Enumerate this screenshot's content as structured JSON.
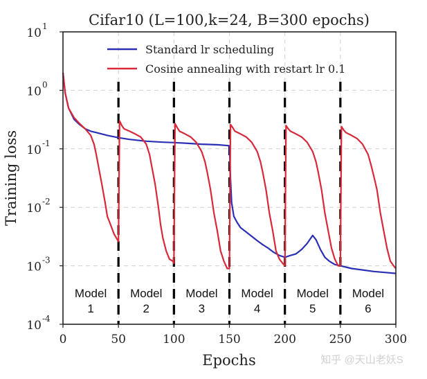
{
  "chart_data": {
    "type": "line",
    "title": "Cifar10 (L=100,k=24, B=300 epochs)",
    "xlabel": "Epochs",
    "ylabel": "Training loss",
    "xlim": [
      0,
      300
    ],
    "ylim": [
      0.0001,
      10
    ],
    "yscale": "log",
    "grid": true,
    "legend_position": "top-right",
    "x_ticks": [
      0,
      50,
      100,
      150,
      200,
      250,
      300
    ],
    "x_tick_labels": [
      "0",
      "50",
      "100",
      "150",
      "200",
      "250",
      "300"
    ],
    "y_ticks": [
      0.0001,
      0.001,
      0.01,
      0.1,
      1,
      10
    ],
    "y_tick_labels": [
      {
        "base": "10",
        "exp": "-4"
      },
      {
        "base": "10",
        "exp": "-3"
      },
      {
        "base": "10",
        "exp": "-2"
      },
      {
        "base": "10",
        "exp": "-1"
      },
      {
        "base": "10",
        "exp": "0"
      },
      {
        "base": "10",
        "exp": "1"
      }
    ],
    "series": [
      {
        "name": "Standard lr scheduling",
        "color": "#2a2fb5",
        "points": [
          [
            0,
            2.0
          ],
          [
            2,
            0.9
          ],
          [
            5,
            0.5
          ],
          [
            10,
            0.32
          ],
          [
            15,
            0.26
          ],
          [
            20,
            0.22
          ],
          [
            25,
            0.2
          ],
          [
            30,
            0.19
          ],
          [
            40,
            0.17
          ],
          [
            50,
            0.155
          ],
          [
            60,
            0.145
          ],
          [
            75,
            0.135
          ],
          [
            90,
            0.13
          ],
          [
            100,
            0.128
          ],
          [
            110,
            0.125
          ],
          [
            125,
            0.12
          ],
          [
            140,
            0.117
          ],
          [
            150,
            0.113
          ],
          [
            151,
            0.03
          ],
          [
            152,
            0.012
          ],
          [
            154,
            0.007
          ],
          [
            157,
            0.0055
          ],
          [
            160,
            0.0045
          ],
          [
            165,
            0.0038
          ],
          [
            170,
            0.0032
          ],
          [
            175,
            0.0027
          ],
          [
            180,
            0.0023
          ],
          [
            185,
            0.002
          ],
          [
            190,
            0.0017
          ],
          [
            195,
            0.0015
          ],
          [
            200,
            0.0014
          ],
          [
            205,
            0.0015
          ],
          [
            210,
            0.0016
          ],
          [
            215,
            0.0019
          ],
          [
            220,
            0.0024
          ],
          [
            225,
            0.0033
          ],
          [
            228,
            0.0028
          ],
          [
            232,
            0.0019
          ],
          [
            236,
            0.0014
          ],
          [
            240,
            0.0012
          ],
          [
            245,
            0.00105
          ],
          [
            250,
            0.001
          ],
          [
            255,
            0.00095
          ],
          [
            260,
            0.0009
          ],
          [
            270,
            0.00085
          ],
          [
            280,
            0.0008
          ],
          [
            290,
            0.00077
          ],
          [
            300,
            0.00074
          ]
        ]
      },
      {
        "name": "Cosine annealing with restart lr 0.1",
        "color": "#d8283a",
        "points": [
          [
            0,
            2.0
          ],
          [
            2,
            0.9
          ],
          [
            5,
            0.5
          ],
          [
            10,
            0.34
          ],
          [
            15,
            0.27
          ],
          [
            20,
            0.22
          ],
          [
            25,
            0.17
          ],
          [
            28,
            0.12
          ],
          [
            30,
            0.08
          ],
          [
            32,
            0.05
          ],
          [
            35,
            0.025
          ],
          [
            38,
            0.012
          ],
          [
            40,
            0.007
          ],
          [
            43,
            0.005
          ],
          [
            46,
            0.0035
          ],
          [
            49,
            0.0028
          ],
          [
            50,
            0.0026
          ],
          [
            51,
            0.3
          ],
          [
            53,
            0.25
          ],
          [
            55,
            0.22
          ],
          [
            60,
            0.2
          ],
          [
            65,
            0.18
          ],
          [
            70,
            0.16
          ],
          [
            75,
            0.12
          ],
          [
            78,
            0.08
          ],
          [
            80,
            0.05
          ],
          [
            83,
            0.025
          ],
          [
            86,
            0.01
          ],
          [
            88,
            0.005
          ],
          [
            90,
            0.003
          ],
          [
            93,
            0.0018
          ],
          [
            96,
            0.0013
          ],
          [
            99,
            0.0012
          ],
          [
            100,
            0.0011
          ],
          [
            101,
            0.27
          ],
          [
            103,
            0.23
          ],
          [
            105,
            0.2
          ],
          [
            110,
            0.18
          ],
          [
            115,
            0.16
          ],
          [
            120,
            0.13
          ],
          [
            125,
            0.09
          ],
          [
            128,
            0.06
          ],
          [
            130,
            0.04
          ],
          [
            133,
            0.02
          ],
          [
            136,
            0.008
          ],
          [
            139,
            0.004
          ],
          [
            142,
            0.0018
          ],
          [
            145,
            0.0012
          ],
          [
            148,
            0.0009
          ],
          [
            150,
            0.0009
          ],
          [
            151,
            0.26
          ],
          [
            153,
            0.23
          ],
          [
            155,
            0.2
          ],
          [
            160,
            0.18
          ],
          [
            165,
            0.16
          ],
          [
            170,
            0.13
          ],
          [
            175,
            0.09
          ],
          [
            178,
            0.06
          ],
          [
            180,
            0.04
          ],
          [
            183,
            0.02
          ],
          [
            186,
            0.008
          ],
          [
            189,
            0.004
          ],
          [
            192,
            0.0018
          ],
          [
            195,
            0.0013
          ],
          [
            198,
            0.0011
          ],
          [
            200,
            0.001
          ],
          [
            201,
            0.25
          ],
          [
            203,
            0.22
          ],
          [
            205,
            0.2
          ],
          [
            210,
            0.18
          ],
          [
            215,
            0.16
          ],
          [
            220,
            0.13
          ],
          [
            225,
            0.09
          ],
          [
            228,
            0.06
          ],
          [
            230,
            0.04
          ],
          [
            233,
            0.02
          ],
          [
            236,
            0.008
          ],
          [
            239,
            0.004
          ],
          [
            242,
            0.002
          ],
          [
            245,
            0.0013
          ],
          [
            248,
            0.001
          ],
          [
            250,
            0.001
          ],
          [
            251,
            0.24
          ],
          [
            253,
            0.21
          ],
          [
            255,
            0.19
          ],
          [
            260,
            0.17
          ],
          [
            265,
            0.15
          ],
          [
            270,
            0.12
          ],
          [
            275,
            0.08
          ],
          [
            278,
            0.05
          ],
          [
            280,
            0.035
          ],
          [
            283,
            0.02
          ],
          [
            286,
            0.008
          ],
          [
            289,
            0.004
          ],
          [
            292,
            0.002
          ],
          [
            295,
            0.0012
          ],
          [
            298,
            0.001
          ],
          [
            300,
            0.0009
          ]
        ]
      }
    ],
    "annotations": {
      "restart_markers_x": [
        50,
        100,
        150,
        200,
        250
      ],
      "model_labels": [
        {
          "x": 25,
          "line1": "Model",
          "line2": "1"
        },
        {
          "x": 75,
          "line1": "Model",
          "line2": "2"
        },
        {
          "x": 125,
          "line1": "Model",
          "line2": "3"
        },
        {
          "x": 175,
          "line1": "Model",
          "line2": "4"
        },
        {
          "x": 225,
          "line1": "Model",
          "line2": "5"
        },
        {
          "x": 275,
          "line1": "Model",
          "line2": "6"
        }
      ]
    },
    "watermark": "知乎 @天山老妖S"
  }
}
